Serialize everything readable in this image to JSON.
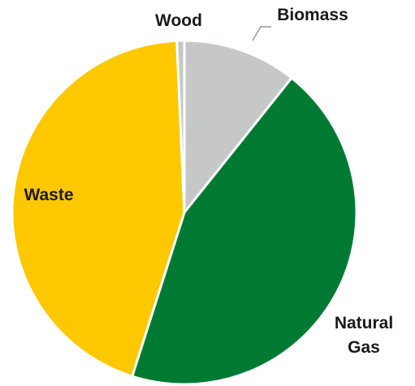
{
  "chart_data": {
    "type": "pie",
    "categories": [
      "Biomass",
      "Natural Gas",
      "Waste",
      "Wood"
    ],
    "values": [
      10.7,
      44.2,
      44.4,
      0.7
    ],
    "colors": [
      "#c6c8c8",
      "#007a33",
      "#fdc800",
      "#c6c8c8"
    ]
  }
}
